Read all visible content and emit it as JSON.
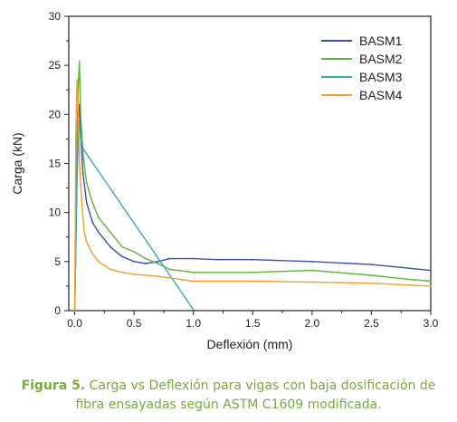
{
  "caption": {
    "label": "Figura 5.",
    "text": "Carga vs Deflexión para vigas con baja dosificación de fibra ensayadas según ASTM C1609 modificada."
  },
  "chart_data": {
    "type": "line",
    "title": "",
    "xlabel": "Deflexión (mm)",
    "ylabel": "Carga (kN)",
    "xlim": [
      -0.05,
      3.0
    ],
    "ylim": [
      0,
      30
    ],
    "xticks": [
      "0.0",
      "0.5",
      "1.0",
      "1.5",
      "2.0",
      "2.5",
      "3.0"
    ],
    "yticks": [
      "0",
      "5",
      "10",
      "15",
      "20",
      "25",
      "30"
    ],
    "legend_position": "top-right",
    "grid": false,
    "series": [
      {
        "name": "BASM1",
        "color": "#3b4fa8",
        "x": [
          0.0,
          0.02,
          0.03,
          0.04,
          0.05,
          0.07,
          0.1,
          0.15,
          0.2,
          0.3,
          0.4,
          0.5,
          0.6,
          0.7,
          0.8,
          1.0,
          1.2,
          1.5,
          2.0,
          2.5,
          3.0
        ],
        "y": [
          0,
          14,
          19,
          21,
          18,
          14,
          11,
          9,
          8,
          6.5,
          5.5,
          5.0,
          4.8,
          5.0,
          5.3,
          5.3,
          5.2,
          5.2,
          5.0,
          4.7,
          4.1
        ]
      },
      {
        "name": "BASM2",
        "color": "#5fb33c",
        "x": [
          0.0,
          0.02,
          0.03,
          0.04,
          0.05,
          0.07,
          0.1,
          0.15,
          0.2,
          0.3,
          0.4,
          0.5,
          0.6,
          0.7,
          0.8,
          1.0,
          1.5,
          2.0,
          2.5,
          2.8,
          3.0
        ],
        "y": [
          0,
          18,
          23,
          25.4,
          20,
          16,
          13,
          11,
          9.5,
          8,
          6.5,
          6,
          5.3,
          4.8,
          4.2,
          3.9,
          3.9,
          4.1,
          3.6,
          3.2,
          3.0
        ]
      },
      {
        "name": "BASM3",
        "color": "#3aaab0",
        "x": [
          0.0,
          0.02,
          0.03,
          0.05,
          0.07,
          1.0
        ],
        "y": [
          0,
          16,
          20,
          17.5,
          16.5,
          0.1
        ]
      },
      {
        "name": "BASM4",
        "color": "#f39c32",
        "x": [
          0.0,
          0.01,
          0.02,
          0.03,
          0.04,
          0.06,
          0.08,
          0.1,
          0.15,
          0.2,
          0.3,
          0.4,
          0.5,
          0.7,
          1.0,
          1.5,
          2.0,
          2.5,
          3.0
        ],
        "y": [
          0,
          19,
          23.5,
          20,
          15,
          11,
          8,
          7,
          5.8,
          5,
          4.2,
          3.9,
          3.7,
          3.5,
          3.0,
          3.0,
          2.9,
          2.8,
          2.5
        ]
      }
    ]
  }
}
